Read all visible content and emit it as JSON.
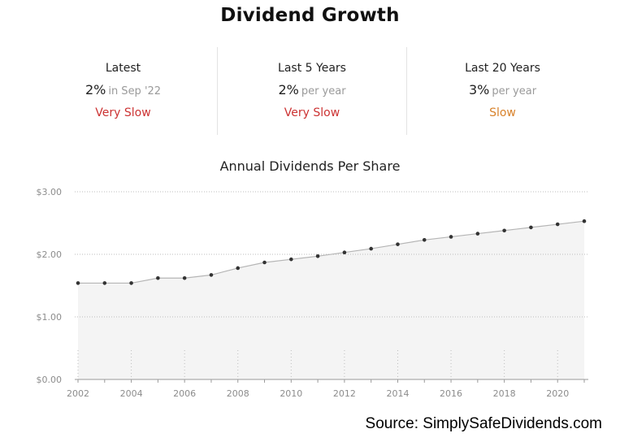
{
  "title": "Dividend Growth",
  "stats": [
    {
      "label": "Latest",
      "value": "2%",
      "suffix": "in Sep '22",
      "rating": "Very Slow",
      "rating_color": "#cc3333"
    },
    {
      "label": "Last 5 Years",
      "value": "2%",
      "suffix": "per year",
      "rating": "Very Slow",
      "rating_color": "#cc3333"
    },
    {
      "label": "Last 20 Years",
      "value": "3%",
      "suffix": "per year",
      "rating": "Slow",
      "rating_color": "#d8822b"
    }
  ],
  "source": "Source: SimplySafeDividends.com",
  "chart_data": {
    "type": "area",
    "title": "Annual Dividends Per Share",
    "xlabel": "",
    "ylabel": "",
    "x": [
      2002,
      2003,
      2004,
      2005,
      2006,
      2007,
      2008,
      2009,
      2010,
      2011,
      2012,
      2013,
      2014,
      2015,
      2016,
      2017,
      2018,
      2019,
      2020,
      2021
    ],
    "values": [
      1.54,
      1.54,
      1.54,
      1.62,
      1.62,
      1.67,
      1.78,
      1.87,
      1.92,
      1.97,
      2.03,
      2.09,
      2.16,
      2.23,
      2.28,
      2.33,
      2.38,
      2.43,
      2.48,
      2.53
    ],
    "xticks": [
      2002,
      2004,
      2006,
      2008,
      2010,
      2012,
      2014,
      2016,
      2018,
      2020
    ],
    "yticks": [
      "$0.00",
      "$1.00",
      "$2.00",
      "$3.00"
    ],
    "ylim": [
      0,
      3
    ],
    "grid": true,
    "colors": {
      "fill": "#f4f4f4",
      "line": "#b5b5b5",
      "point": "#333333",
      "grid": "#bdbdbd",
      "tick_text": "#8c8c8c"
    }
  }
}
